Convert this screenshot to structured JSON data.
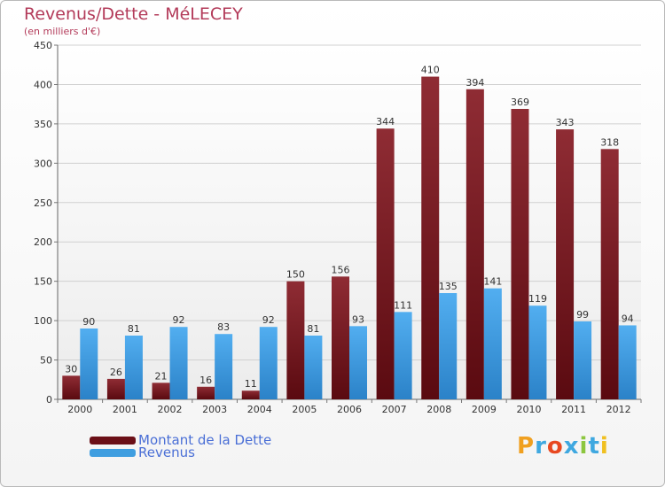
{
  "title": "Revenus/Dette - MéLECEY",
  "subtitle": "(en milliers d'€)",
  "chart_data": {
    "type": "bar",
    "title": "Revenus/Dette - MéLECEY",
    "subtitle": "(en milliers d'€)",
    "xlabel": "",
    "ylabel": "",
    "categories": [
      "2000",
      "2001",
      "2002",
      "2003",
      "2004",
      "2005",
      "2006",
      "2007",
      "2008",
      "2009",
      "2010",
      "2011",
      "2012"
    ],
    "series": [
      {
        "name": "Montant de la Dette",
        "color": "#7a1a22",
        "values": [
          30,
          26,
          21,
          16,
          11,
          150,
          156,
          344,
          410,
          394,
          369,
          343,
          318
        ]
      },
      {
        "name": "Revenus",
        "color": "#3f9ee0",
        "values": [
          90,
          81,
          92,
          83,
          92,
          81,
          93,
          111,
          135,
          141,
          119,
          99,
          94
        ]
      }
    ],
    "ylim": [
      0,
      450
    ],
    "yticks": [
      0,
      50,
      100,
      150,
      200,
      250,
      300,
      350,
      400,
      450
    ],
    "grid": true,
    "legend": "bottom-left"
  },
  "legend": {
    "items": [
      {
        "label": "Montant de la Dette",
        "color": "#6b0f17"
      },
      {
        "label": "Revenus",
        "color": "#3f9ee0"
      }
    ]
  },
  "logo": {
    "letters": [
      "P",
      "r",
      "o",
      "x",
      "i",
      "t",
      "i"
    ],
    "colors": [
      "#f0a020",
      "#3fa8e0",
      "#e84820",
      "#3fa8e0",
      "#8cc63f",
      "#3fa8e0",
      "#f0c020"
    ]
  }
}
